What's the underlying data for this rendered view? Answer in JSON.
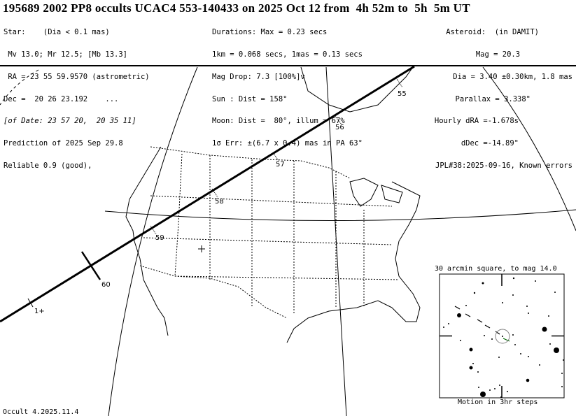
{
  "header": {
    "title": "195689 2002 PP8 occults UCAC4 553-140433 on 2025 Oct 12 from  4h 52m to  5h  5m UT",
    "star": [
      "Star:    (Dia < 0.1 mas)",
      " Mv 13.0; Mr 12.5; [Mb 13.3]",
      " RA = 23 55 59.9570 (astrometric)",
      "Dec =  20 26 23.192    ...",
      "[of Date: 23 57 20,  20 35 11]",
      "Prediction of 2025 Sep 29.8",
      "Reliable 0.9 (good),"
    ],
    "event": [
      "Durations: Max = 0.23 secs",
      "1km = 0.068 secs, 1mas = 0.13 secs",
      "Mag Drop: 7.3 [100%]v",
      "Sun : Dist = 158°",
      "Moon: Dist =  80°, illum = 67%",
      "1σ Err: ±(6.7 x 0.4) mas in PA 63°"
    ],
    "asteroid": [
      "Asteroid:  (in DAMIT)",
      "   Mag = 20.3",
      "   Dia = 3.40 ±0.30km, 1.8 mas",
      "Parallax = 3.338\"",
      "Hourly dRA =-1.678s",
      "dDec =-14.89\"",
      "JPL#38:2025-09-16, Known errors"
    ]
  },
  "map": {
    "path_labels": [
      "55",
      "56",
      "57",
      "58",
      "59",
      "60",
      "1+"
    ],
    "path_color": "#000000"
  },
  "inset": {
    "title": "30 arcmin square, to mag 14.0",
    "caption": "Motion in 3hr steps",
    "target_circle_color": "#808080"
  },
  "footer": "Occult 4.2025.11.4"
}
